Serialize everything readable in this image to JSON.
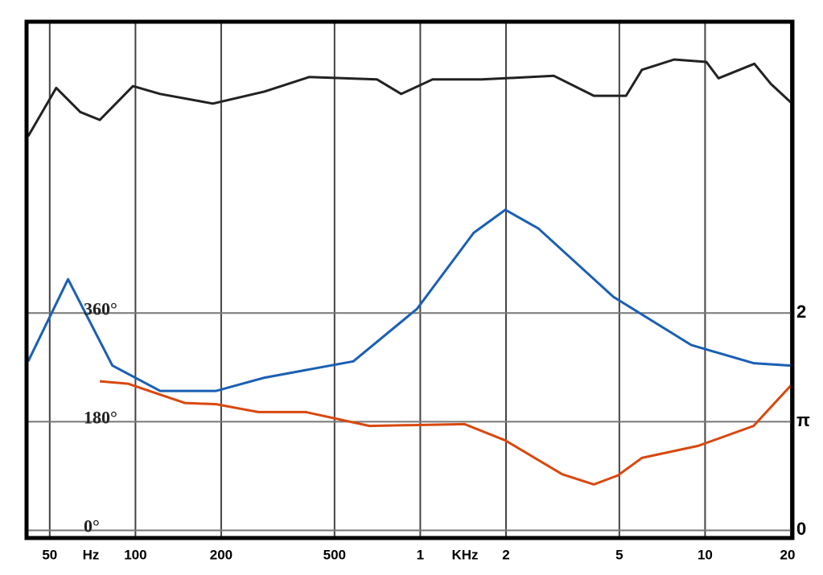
{
  "chart_data": {
    "type": "line",
    "x_unit_labels": [
      "Hz",
      "KHz"
    ],
    "xlog": true,
    "xlim": [
      42,
      20000
    ],
    "xticks": [
      50,
      100,
      200,
      500,
      {
        "value": 1000,
        "label": "1"
      },
      {
        "value": 2000,
        "label": "2"
      },
      {
        "value": 5000,
        "label": "5"
      },
      {
        "value": 10000,
        "label": "10"
      },
      {
        "value": 20000,
        "label": "20"
      }
    ],
    "ylim": [
      -10,
      840
    ],
    "yticks": [
      {
        "value": 0,
        "label": "0°"
      },
      {
        "value": 180,
        "label": "180°"
      },
      {
        "value": 360,
        "label": "360°"
      }
    ],
    "y2lim": [
      -0.056,
      4.667
    ],
    "y2ticks": [
      0,
      {
        "value": 1,
        "label": "π"
      },
      2
    ],
    "grid": true,
    "series": [
      {
        "color": "#222222",
        "x": [
          42,
          52.7,
          64,
          75,
          98,
          122,
          187,
          284,
          407,
          705,
          857,
          1103,
          1640,
          2945,
          4070,
          5280,
          6000,
          7790,
          10100,
          11150,
          14900,
          17000,
          20000
        ],
        "values": [
          653,
          733,
          693,
          680,
          736,
          723,
          707,
          727,
          751,
          747,
          723,
          747,
          747,
          753,
          720,
          720,
          763,
          780,
          776,
          749,
          773,
          740,
          709
        ]
      },
      {
        "color": "#1a5fb4",
        "x": [
          42,
          58,
          83,
          122,
          192,
          284,
          582,
          974,
          1540,
          1990,
          2600,
          4760,
          8950,
          14800,
          20000
        ],
        "values": [
          280,
          416,
          273,
          231,
          231,
          253,
          280,
          367,
          493,
          531,
          500,
          387,
          307,
          277,
          273
        ]
      },
      {
        "color": "#d9480f",
        "x": [
          75,
          94,
          149,
          192,
          270,
          396,
          663,
          1430,
          1990,
          3150,
          4070,
          4940,
          6000,
          9460,
          14800,
          20000
        ],
        "values": [
          247,
          243,
          211,
          209,
          196,
          196,
          173,
          176,
          149,
          93,
          76,
          91,
          120,
          140,
          173,
          240
        ]
      }
    ]
  }
}
